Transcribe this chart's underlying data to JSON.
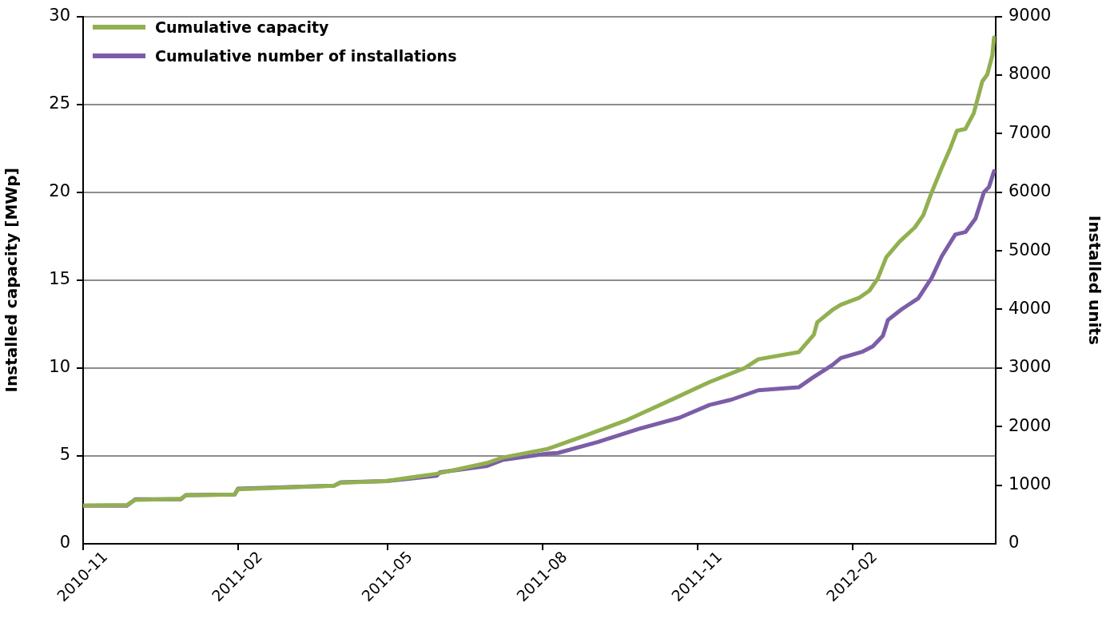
{
  "chart_data": {
    "type": "line",
    "ylabel": "Installed capacity [MWp]",
    "y2label": "Installed units",
    "xlim": [
      "2010-11-01",
      "2012-04-26"
    ],
    "xticks": [
      "2010-11",
      "2011-02",
      "2011-05",
      "2011-08",
      "2011-11",
      "2012-02"
    ],
    "ylim": [
      0,
      30
    ],
    "yticks": [
      0,
      5,
      10,
      15,
      20,
      25,
      30
    ],
    "y2lim": [
      0,
      9000
    ],
    "y2ticks": [
      0,
      1000,
      2000,
      3000,
      4000,
      5000,
      6000,
      7000,
      8000,
      9000
    ],
    "grid": "y",
    "legend": "top left",
    "marker": "none",
    "line_style": "solid",
    "series": [
      {
        "name": "Cumulative capacity",
        "color": "#92b050",
        "x": [
          "2010-11-01",
          "2010-11-27",
          "2010-12-02",
          "2010-12-29",
          "2011-01-01",
          "2011-01-30",
          "2011-02-01",
          "2011-03-30",
          "2011-04-03",
          "2011-04-30",
          "2011-05-30",
          "2011-06-29",
          "2011-07-08",
          "2011-08-04",
          "2011-08-10",
          "2011-08-26",
          "2011-09-19",
          "2011-10-12",
          "2011-11-08",
          "2011-11-29",
          "2011-12-07",
          "2011-12-31",
          "2012-01-09",
          "2012-01-11",
          "2012-01-20",
          "2012-01-25",
          "2012-02-05",
          "2012-02-11",
          "2012-02-16",
          "2012-02-21",
          "2012-02-29",
          "2012-03-09",
          "2012-03-14",
          "2012-03-19",
          "2012-03-25",
          "2012-03-30",
          "2012-04-03",
          "2012-04-08",
          "2012-04-13",
          "2012-04-18",
          "2012-04-21",
          "2012-04-24",
          "2012-04-25"
        ],
        "values": [
          2.17,
          2.2,
          2.5,
          2.55,
          2.76,
          2.8,
          3.1,
          3.3,
          3.48,
          3.57,
          3.98,
          4.6,
          4.9,
          5.4,
          5.6,
          6.15,
          7.0,
          8.0,
          9.2,
          10.0,
          10.5,
          10.9,
          11.9,
          12.6,
          13.3,
          13.6,
          14.0,
          14.4,
          15.1,
          16.3,
          17.2,
          18.0,
          18.7,
          20.0,
          21.4,
          22.5,
          23.5,
          23.6,
          24.5,
          26.3,
          26.7,
          27.8,
          28.8
        ]
      },
      {
        "name": "Cumulative number of installations",
        "color": "#7b5ea7",
        "axis": "y2",
        "x": [
          "2010-11-01",
          "2010-11-27",
          "2010-12-02",
          "2010-12-29",
          "2011-01-01",
          "2011-01-30",
          "2011-02-01",
          "2011-03-30",
          "2011-04-03",
          "2011-04-30",
          "2011-05-30",
          "2011-06-01",
          "2011-06-29",
          "2011-07-08",
          "2011-08-04",
          "2011-08-10",
          "2011-09-03",
          "2011-09-27",
          "2011-10-21",
          "2011-11-08",
          "2011-11-21",
          "2011-12-07",
          "2011-12-31",
          "2012-01-08",
          "2012-01-20",
          "2012-01-25",
          "2012-02-07",
          "2012-02-13",
          "2012-02-19",
          "2012-02-22",
          "2012-03-01",
          "2012-03-11",
          "2012-03-19",
          "2012-03-25",
          "2012-04-02",
          "2012-04-08",
          "2012-04-14",
          "2012-04-19",
          "2012-04-22",
          "2012-04-25"
        ],
        "values": [
          650,
          650,
          760,
          760,
          830,
          840,
          940,
          990,
          1050,
          1070,
          1160,
          1220,
          1330,
          1430,
          1540,
          1550,
          1740,
          1960,
          2150,
          2370,
          2460,
          2620,
          2670,
          2830,
          3050,
          3170,
          3280,
          3370,
          3550,
          3820,
          4000,
          4190,
          4540,
          4910,
          5280,
          5320,
          5550,
          6000,
          6090,
          6360
        ]
      }
    ]
  }
}
